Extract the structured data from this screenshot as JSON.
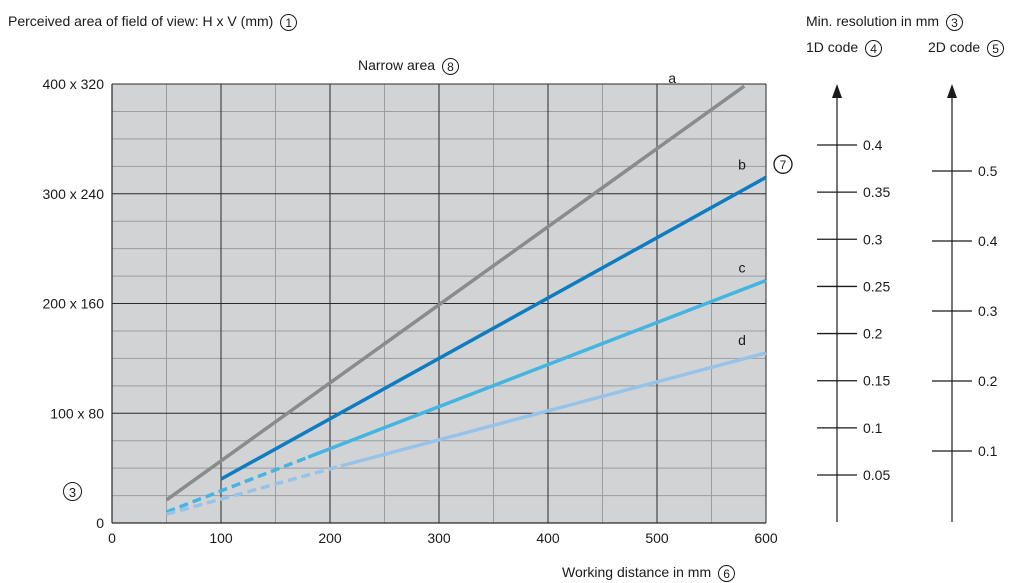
{
  "header": {
    "perceived_area_label": "Perceived area of field of view: H x V (mm)",
    "perceived_area_marker": "1",
    "min_resolution_label": "Min. resolution in mm",
    "min_resolution_marker": "3",
    "code1d_label": "1D code",
    "code1d_marker": "4",
    "code2d_label": "2D code",
    "code2d_marker": "5"
  },
  "chart_data": {
    "type": "line",
    "title": "Narrow area",
    "title_marker": "8",
    "xlabel": "Working distance in mm",
    "xlabel_marker": "6",
    "ylabel": "Perceived area of field of view: H x V (mm)",
    "xlim": [
      0,
      600
    ],
    "ylim": [
      0,
      400
    ],
    "xticks": [
      0,
      100,
      200,
      300,
      400,
      500,
      600
    ],
    "xtick_labels": [
      "0",
      "100",
      "200",
      "300",
      "400",
      "500",
      "600"
    ],
    "yticks": [
      0,
      100,
      200,
      300,
      400
    ],
    "ytick_labels": [
      "0",
      "100 x 80",
      "200 x 160",
      "300 x 240",
      "400 x 320"
    ],
    "grid": true,
    "background_color": "#d2d3d5",
    "corner_marker": "3",
    "series_b_marker": "7",
    "series": [
      {
        "name": "a",
        "color": "#8a8b8d",
        "solid": [
          [
            50,
            21
          ],
          [
            580,
            398
          ]
        ],
        "dashed": []
      },
      {
        "name": "b",
        "color": "#0d7cc1",
        "solid": [
          [
            100,
            40
          ],
          [
            600,
            315
          ]
        ],
        "dashed": []
      },
      {
        "name": "c",
        "color": "#44b5e0",
        "solid": [
          [
            180,
            60
          ],
          [
            600,
            221
          ]
        ],
        "dashed": [
          [
            50,
            10
          ],
          [
            180,
            60
          ]
        ]
      },
      {
        "name": "d",
        "color": "#98c3e9",
        "solid": [
          [
            210,
            52
          ],
          [
            600,
            155
          ]
        ],
        "dashed": [
          [
            50,
            8
          ],
          [
            210,
            52
          ]
        ]
      }
    ],
    "resolution_scales": [
      {
        "name": "1D code",
        "ticks": [
          {
            "value": 0.4,
            "label": "0.4",
            "y": 0.4
          },
          {
            "value": 0.35,
            "label": "0.35",
            "y": 0.35
          },
          {
            "value": 0.3,
            "label": "0.3",
            "y": 0.3
          },
          {
            "value": 0.25,
            "label": "0.25",
            "y": 0.25
          },
          {
            "value": 0.2,
            "label": "0.2",
            "y": 0.2
          },
          {
            "value": 0.15,
            "label": "0.15",
            "y": 0.15
          },
          {
            "value": 0.1,
            "label": "0.1",
            "y": 0.1
          },
          {
            "value": 0.05,
            "label": "0.05",
            "y": 0.05
          }
        ]
      },
      {
        "name": "2D code",
        "ticks": [
          {
            "value": 0.5,
            "label": "0.5",
            "y": 0.5
          },
          {
            "value": 0.4,
            "label": "0.4",
            "y": 0.4
          },
          {
            "value": 0.3,
            "label": "0.3",
            "y": 0.3
          },
          {
            "value": 0.2,
            "label": "0.2",
            "y": 0.2
          },
          {
            "value": 0.1,
            "label": "0.1",
            "y": 0.1
          }
        ]
      }
    ]
  }
}
